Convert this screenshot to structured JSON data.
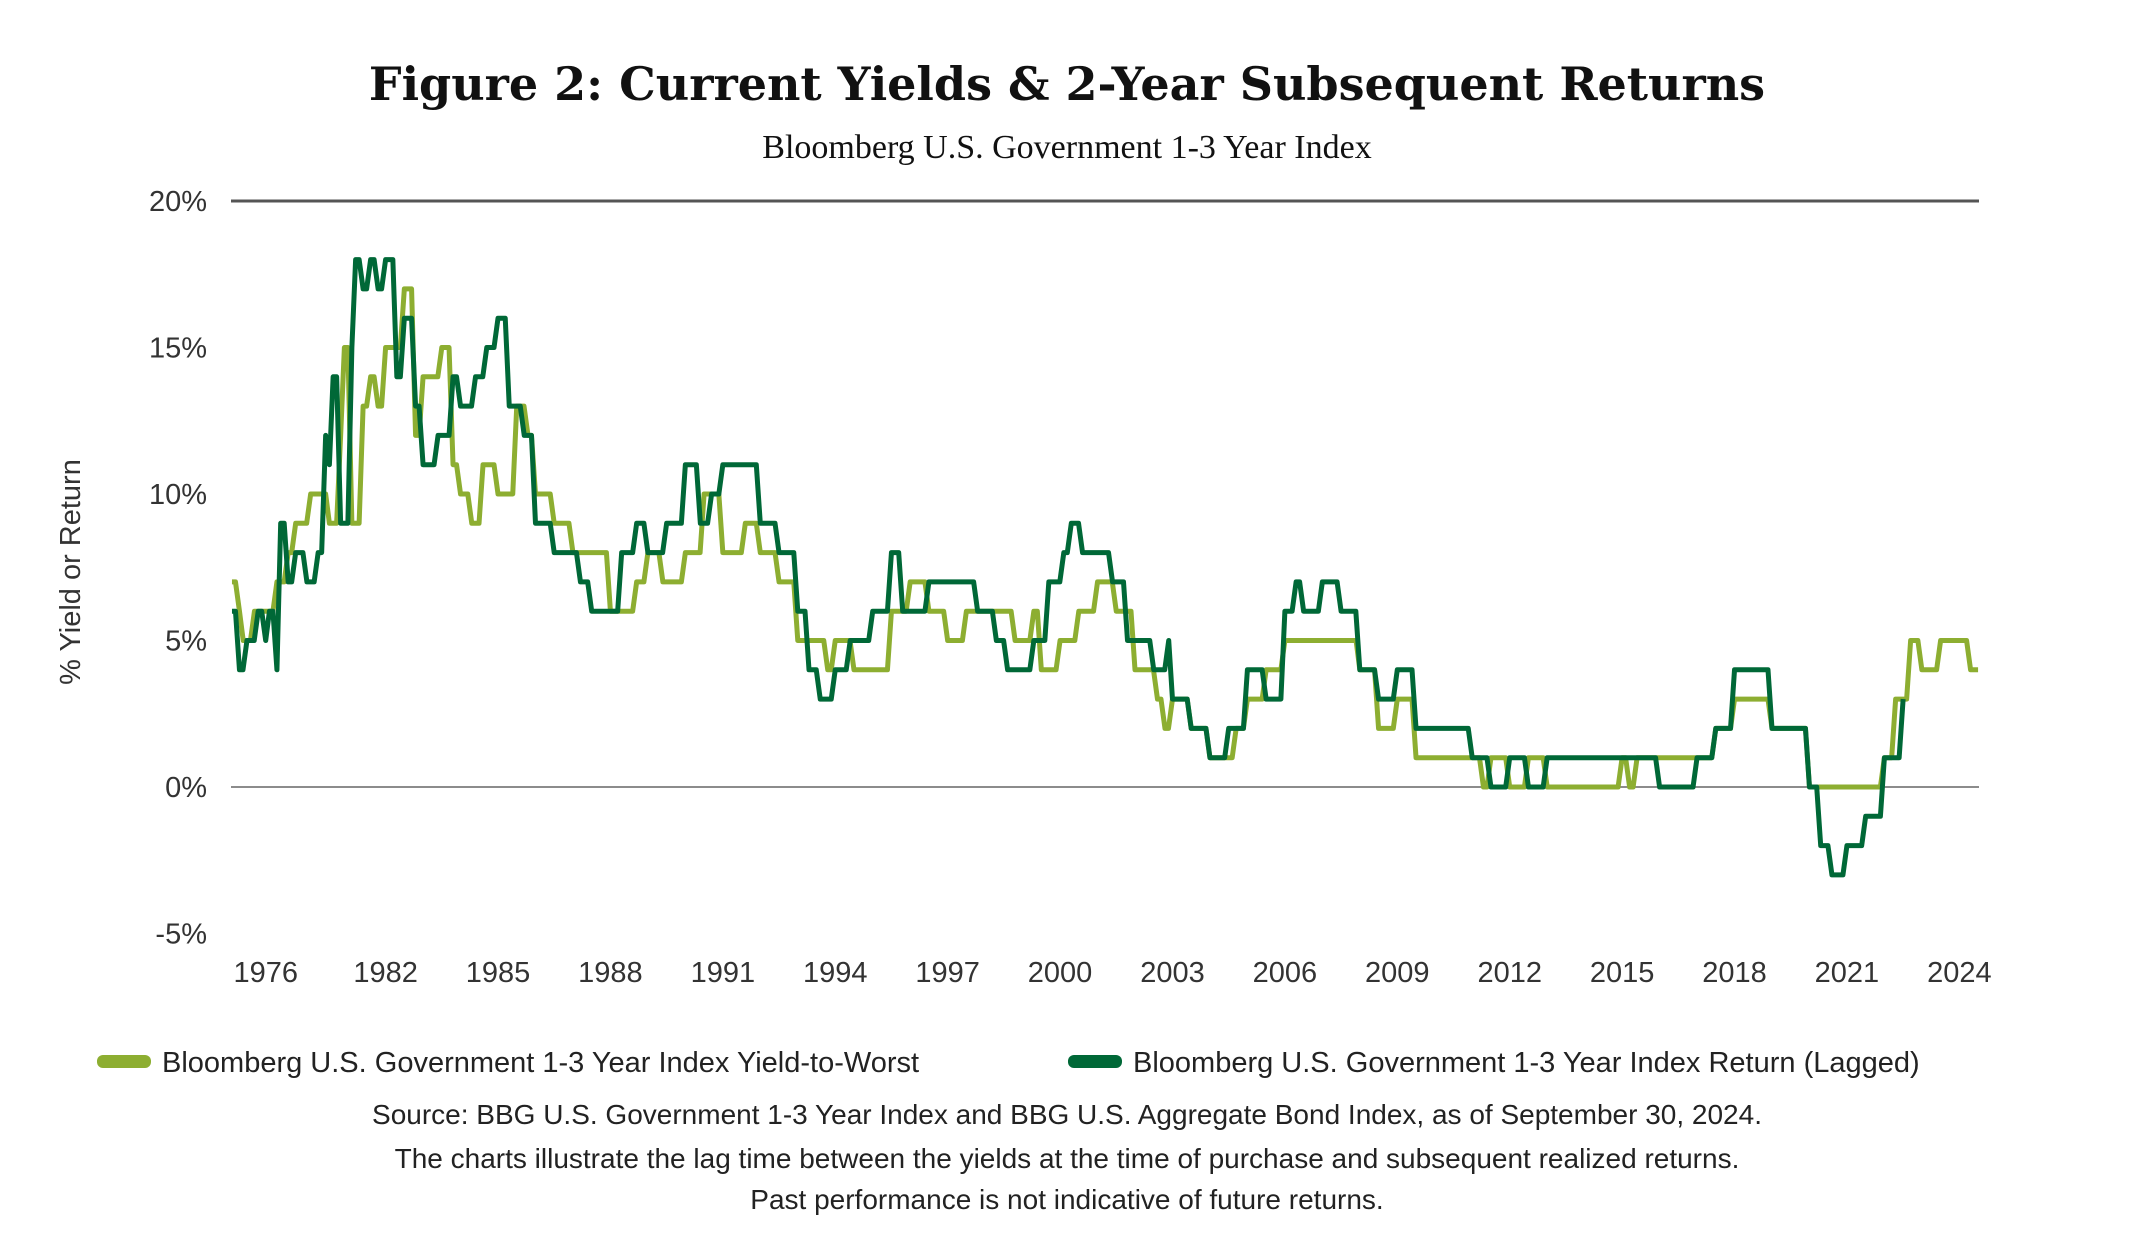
{
  "chart_data": {
    "type": "line",
    "title": "Figure 2: Current Yields & 2-Year Subsequent Returns",
    "subtitle": "Bloomberg U.S. Government 1-3 Year Index",
    "xlabel": "",
    "ylabel": "% Yield or Return",
    "ylim": [
      -5,
      20
    ],
    "y_ticks": [
      {
        "v": 20,
        "label": "20%"
      },
      {
        "v": 15,
        "label": "15%"
      },
      {
        "v": 10,
        "label": "10%"
      },
      {
        "v": 5,
        "label": "5%"
      },
      {
        "v": 0,
        "label": "0%"
      },
      {
        "v": -5,
        "label": "-5%"
      }
    ],
    "gridlines_at": [
      20,
      0
    ],
    "x_ticks": [
      {
        "at": 1978.8,
        "label": "1976"
      },
      {
        "at": 1982,
        "label": "1982"
      },
      {
        "at": 1985,
        "label": "1985"
      },
      {
        "at": 1988,
        "label": "1988"
      },
      {
        "at": 1991,
        "label": "1991"
      },
      {
        "at": 1994,
        "label": "1994"
      },
      {
        "at": 1997,
        "label": "1997"
      },
      {
        "at": 2000,
        "label": "2000"
      },
      {
        "at": 2003,
        "label": "2003"
      },
      {
        "at": 2006,
        "label": "2006"
      },
      {
        "at": 2009,
        "label": "2009"
      },
      {
        "at": 2012,
        "label": "2012"
      },
      {
        "at": 2015,
        "label": "2015"
      },
      {
        "at": 2018,
        "label": "2018"
      },
      {
        "at": 2021,
        "label": "2021"
      },
      {
        "at": 2024,
        "label": "2024"
      }
    ],
    "legend_position": "bottom",
    "series": [
      {
        "name": "Bloomberg U.S. Government 1-3 Year Index Yield-to-Worst",
        "color": "#8DAE31",
        "points": [
          [
            1977.9,
            7
          ],
          [
            1978.1,
            6
          ],
          [
            1978.2,
            5
          ],
          [
            1978.5,
            6
          ],
          [
            1979.1,
            7
          ],
          [
            1979.4,
            8
          ],
          [
            1979.6,
            9
          ],
          [
            1980.0,
            10
          ],
          [
            1980.4,
            10
          ],
          [
            1980.5,
            9
          ],
          [
            1980.8,
            12
          ],
          [
            1980.9,
            15
          ],
          [
            1981.1,
            9
          ],
          [
            1981.4,
            13
          ],
          [
            1981.6,
            14
          ],
          [
            1981.8,
            13
          ],
          [
            1982,
            15
          ],
          [
            1982.5,
            17
          ],
          [
            1982.8,
            12
          ],
          [
            1983,
            14
          ],
          [
            1983.5,
            15
          ],
          [
            1983.8,
            11
          ],
          [
            1984,
            10
          ],
          [
            1984.3,
            9
          ],
          [
            1984.6,
            11
          ],
          [
            1985,
            10
          ],
          [
            1985.5,
            13
          ],
          [
            1985.8,
            12
          ],
          [
            1986,
            10
          ],
          [
            1986.5,
            9
          ],
          [
            1987,
            8
          ],
          [
            1988,
            6
          ],
          [
            1988.7,
            7
          ],
          [
            1989,
            8
          ],
          [
            1989.4,
            7
          ],
          [
            1990,
            8
          ],
          [
            1990.5,
            10
          ],
          [
            1991,
            8
          ],
          [
            1991.6,
            9
          ],
          [
            1992,
            8
          ],
          [
            1992.5,
            7
          ],
          [
            1993,
            5
          ],
          [
            1993.8,
            4
          ],
          [
            1994,
            5
          ],
          [
            1994.5,
            4
          ],
          [
            1995,
            4
          ],
          [
            1995.5,
            6
          ],
          [
            1996,
            7
          ],
          [
            1996.5,
            6
          ],
          [
            1997,
            5
          ],
          [
            1997.5,
            6
          ],
          [
            1998.5,
            6
          ],
          [
            1998.8,
            5
          ],
          [
            1999.3,
            6
          ],
          [
            1999.5,
            4
          ],
          [
            2000,
            5
          ],
          [
            2000.5,
            6
          ],
          [
            2001,
            7
          ],
          [
            2001.5,
            6
          ],
          [
            2002,
            4
          ],
          [
            2002.6,
            3
          ],
          [
            2002.8,
            2
          ],
          [
            2003,
            3
          ],
          [
            2003.5,
            2
          ],
          [
            2004,
            1
          ],
          [
            2004.7,
            2
          ],
          [
            2005,
            3
          ],
          [
            2005.5,
            4
          ],
          [
            2006,
            5
          ],
          [
            2007.9,
            5
          ],
          [
            2008,
            4
          ],
          [
            2008.5,
            2
          ],
          [
            2009,
            3
          ],
          [
            2009.5,
            1
          ],
          [
            2011.3,
            0
          ],
          [
            2011.5,
            1
          ],
          [
            2012,
            0
          ],
          [
            2012.5,
            1
          ],
          [
            2013,
            0
          ],
          [
            2015,
            1
          ],
          [
            2015.2,
            0
          ],
          [
            2015.4,
            1
          ],
          [
            2017.5,
            2
          ],
          [
            2018,
            3
          ],
          [
            2019,
            2
          ],
          [
            2019.7,
            2
          ],
          [
            2020,
            0
          ],
          [
            2022,
            1
          ],
          [
            2022.3,
            3
          ],
          [
            2022.7,
            5
          ],
          [
            2023,
            4
          ],
          [
            2023.5,
            5
          ],
          [
            2024.3,
            4
          ],
          [
            2024.5,
            4
          ]
        ]
      },
      {
        "name": "Bloomberg U.S. Government 1-3 Year Index Return (Lagged)",
        "color": "#006837",
        "points": [
          [
            1977.9,
            6
          ],
          [
            1978.1,
            4
          ],
          [
            1978.3,
            5
          ],
          [
            1978.6,
            6
          ],
          [
            1978.8,
            5
          ],
          [
            1978.9,
            6
          ],
          [
            1979.1,
            4
          ],
          [
            1979.2,
            9
          ],
          [
            1979.4,
            7
          ],
          [
            1979.6,
            8
          ],
          [
            1979.9,
            7
          ],
          [
            1980.2,
            8
          ],
          [
            1980.4,
            12
          ],
          [
            1980.5,
            11
          ],
          [
            1980.6,
            14
          ],
          [
            1980.8,
            9
          ],
          [
            1981.1,
            15
          ],
          [
            1981.2,
            18
          ],
          [
            1981.4,
            17
          ],
          [
            1981.6,
            18
          ],
          [
            1981.8,
            17
          ],
          [
            1982,
            18
          ],
          [
            1982.3,
            14
          ],
          [
            1982.5,
            16
          ],
          [
            1982.8,
            13
          ],
          [
            1983,
            11
          ],
          [
            1983.4,
            12
          ],
          [
            1983.8,
            14
          ],
          [
            1984,
            13
          ],
          [
            1984.4,
            14
          ],
          [
            1984.7,
            15
          ],
          [
            1985,
            16
          ],
          [
            1985.3,
            13
          ],
          [
            1985.7,
            12
          ],
          [
            1986,
            9
          ],
          [
            1986.5,
            8
          ],
          [
            1987.2,
            7
          ],
          [
            1987.5,
            6
          ],
          [
            1988.3,
            8
          ],
          [
            1988.7,
            9
          ],
          [
            1989,
            8
          ],
          [
            1989.5,
            9
          ],
          [
            1990,
            11
          ],
          [
            1990.4,
            9
          ],
          [
            1990.7,
            10
          ],
          [
            1991,
            11
          ],
          [
            1991.6,
            11
          ],
          [
            1992,
            9
          ],
          [
            1992.5,
            8
          ],
          [
            1993,
            6
          ],
          [
            1993.3,
            4
          ],
          [
            1993.6,
            3
          ],
          [
            1994,
            4
          ],
          [
            1994.4,
            5
          ],
          [
            1995,
            6
          ],
          [
            1995.5,
            8
          ],
          [
            1995.8,
            6
          ],
          [
            1996.5,
            7
          ],
          [
            1997.4,
            7
          ],
          [
            1997.8,
            6
          ],
          [
            1998.3,
            5
          ],
          [
            1998.6,
            4
          ],
          [
            1999.3,
            5
          ],
          [
            1999.7,
            7
          ],
          [
            2000.1,
            8
          ],
          [
            2000.3,
            9
          ],
          [
            2000.6,
            8
          ],
          [
            2001.4,
            7
          ],
          [
            2001.8,
            5
          ],
          [
            2002.5,
            4
          ],
          [
            2002.9,
            5
          ],
          [
            2003,
            3
          ],
          [
            2003.5,
            2
          ],
          [
            2004,
            1
          ],
          [
            2004.5,
            2
          ],
          [
            2005,
            4
          ],
          [
            2005.5,
            3
          ],
          [
            2006,
            6
          ],
          [
            2006.3,
            7
          ],
          [
            2006.5,
            6
          ],
          [
            2007,
            7
          ],
          [
            2007.5,
            6
          ],
          [
            2008,
            4
          ],
          [
            2008.5,
            3
          ],
          [
            2009,
            4
          ],
          [
            2009.5,
            2
          ],
          [
            2011,
            1
          ],
          [
            2011.5,
            0
          ],
          [
            2012,
            1
          ],
          [
            2012.5,
            0
          ],
          [
            2013,
            1
          ],
          [
            2016,
            0
          ],
          [
            2017,
            1
          ],
          [
            2017.5,
            2
          ],
          [
            2018,
            4
          ],
          [
            2019,
            2
          ],
          [
            2020,
            0
          ],
          [
            2020.3,
            -2
          ],
          [
            2020.6,
            -3
          ],
          [
            2021,
            -2
          ],
          [
            2021.5,
            -1
          ],
          [
            2022,
            1
          ],
          [
            2022.5,
            3
          ]
        ]
      }
    ],
    "footnotes": [
      "Source: BBG U.S. Government 1-3 Year Index and BBG U.S. Aggregate Bond Index, as of September 30, 2024.",
      "The charts illustrate the lag time between the yields at the time of purchase and subsequent realized returns.",
      "Past performance is not indicative of future returns."
    ]
  }
}
